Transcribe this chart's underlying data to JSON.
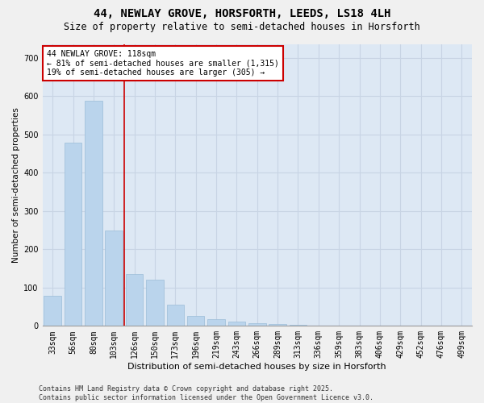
{
  "title_line1": "44, NEWLAY GROVE, HORSFORTH, LEEDS, LS18 4LH",
  "title_line2": "Size of property relative to semi-detached houses in Horsforth",
  "xlabel": "Distribution of semi-detached houses by size in Horsforth",
  "ylabel": "Number of semi-detached properties",
  "categories": [
    "33sqm",
    "56sqm",
    "80sqm",
    "103sqm",
    "126sqm",
    "150sqm",
    "173sqm",
    "196sqm",
    "219sqm",
    "243sqm",
    "266sqm",
    "289sqm",
    "313sqm",
    "336sqm",
    "359sqm",
    "383sqm",
    "406sqm",
    "429sqm",
    "452sqm",
    "476sqm",
    "499sqm"
  ],
  "values": [
    78,
    478,
    588,
    250,
    135,
    120,
    55,
    25,
    18,
    12,
    8,
    5,
    2,
    0,
    0,
    0,
    0,
    0,
    0,
    0,
    0
  ],
  "bar_color": "#bad4ec",
  "bar_edge_color": "#9bbcd8",
  "grid_color": "#c8d4e4",
  "background_color": "#dde8f4",
  "fig_background": "#f0f0f0",
  "annotation_text": "44 NEWLAY GROVE: 118sqm\n← 81% of semi-detached houses are smaller (1,315)\n19% of semi-detached houses are larger (305) →",
  "annotation_box_facecolor": "#ffffff",
  "annotation_box_edgecolor": "#cc0000",
  "vline_x": 3.5,
  "vline_color": "#cc0000",
  "ylim": [
    0,
    735
  ],
  "yticks": [
    0,
    100,
    200,
    300,
    400,
    500,
    600,
    700
  ],
  "footer_line1": "Contains HM Land Registry data © Crown copyright and database right 2025.",
  "footer_line2": "Contains public sector information licensed under the Open Government Licence v3.0.",
  "title_fontsize": 10,
  "subtitle_fontsize": 8.5,
  "tick_fontsize": 7,
  "ylabel_fontsize": 7.5,
  "xlabel_fontsize": 8,
  "annotation_fontsize": 7,
  "footer_fontsize": 6
}
